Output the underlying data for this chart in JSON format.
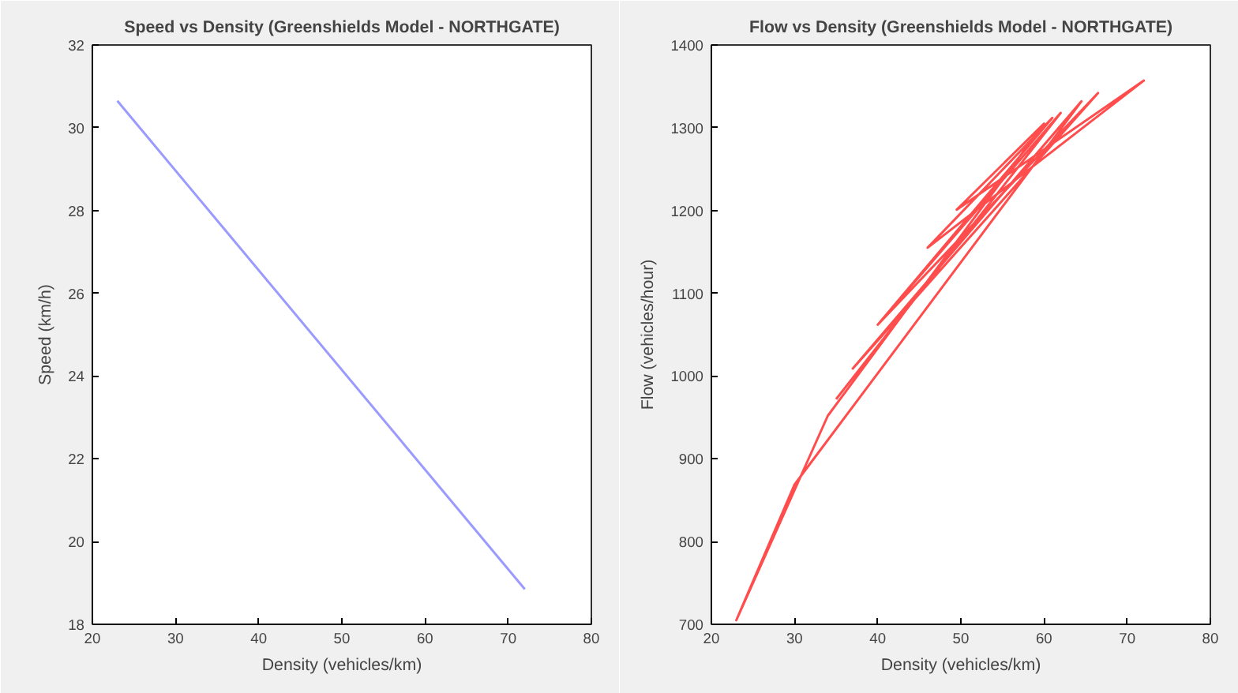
{
  "chart_data": [
    {
      "type": "line",
      "title": "Speed vs Density (Greenshields Model - NORTHGATE)",
      "xlabel": "Density (vehicles/km)",
      "ylabel": "Speed (km/h)",
      "series": [
        {
          "color": "#9a9aff",
          "x": [
            23,
            72
          ],
          "values": [
            30.65,
            18.85
          ]
        }
      ],
      "xlim": [
        20,
        80
      ],
      "xticks": [
        20,
        30,
        40,
        50,
        60,
        70,
        80
      ],
      "ylim": [
        18,
        32
      ],
      "yticks": [
        18,
        20,
        22,
        24,
        26,
        28,
        30,
        32
      ],
      "grid": false
    },
    {
      "type": "line",
      "title": "Flow vs Density (Greenshields Model - NORTHGATE)",
      "xlabel": "Density (vehicles/km)",
      "ylabel": "Flow (vehicles/hour)",
      "series": [
        {
          "color": "#ff4d4d",
          "x": [
            35,
            62,
            40,
            66.5,
            37,
            64.5,
            30,
            23,
            34,
            60,
            49.5,
            72,
            46,
            61,
            40
          ],
          "values": [
            972,
            1318,
            1062,
            1342,
            1009,
            1332,
            869,
            705,
            952,
            1305,
            1201,
            1357,
            1155,
            1312,
            1062
          ]
        }
      ],
      "xlim": [
        20,
        80
      ],
      "xticks": [
        20,
        30,
        40,
        50,
        60,
        70,
        80
      ],
      "ylim": [
        700,
        1400
      ],
      "yticks": [
        700,
        800,
        900,
        1000,
        1100,
        1200,
        1300,
        1400
      ],
      "grid": false
    }
  ]
}
